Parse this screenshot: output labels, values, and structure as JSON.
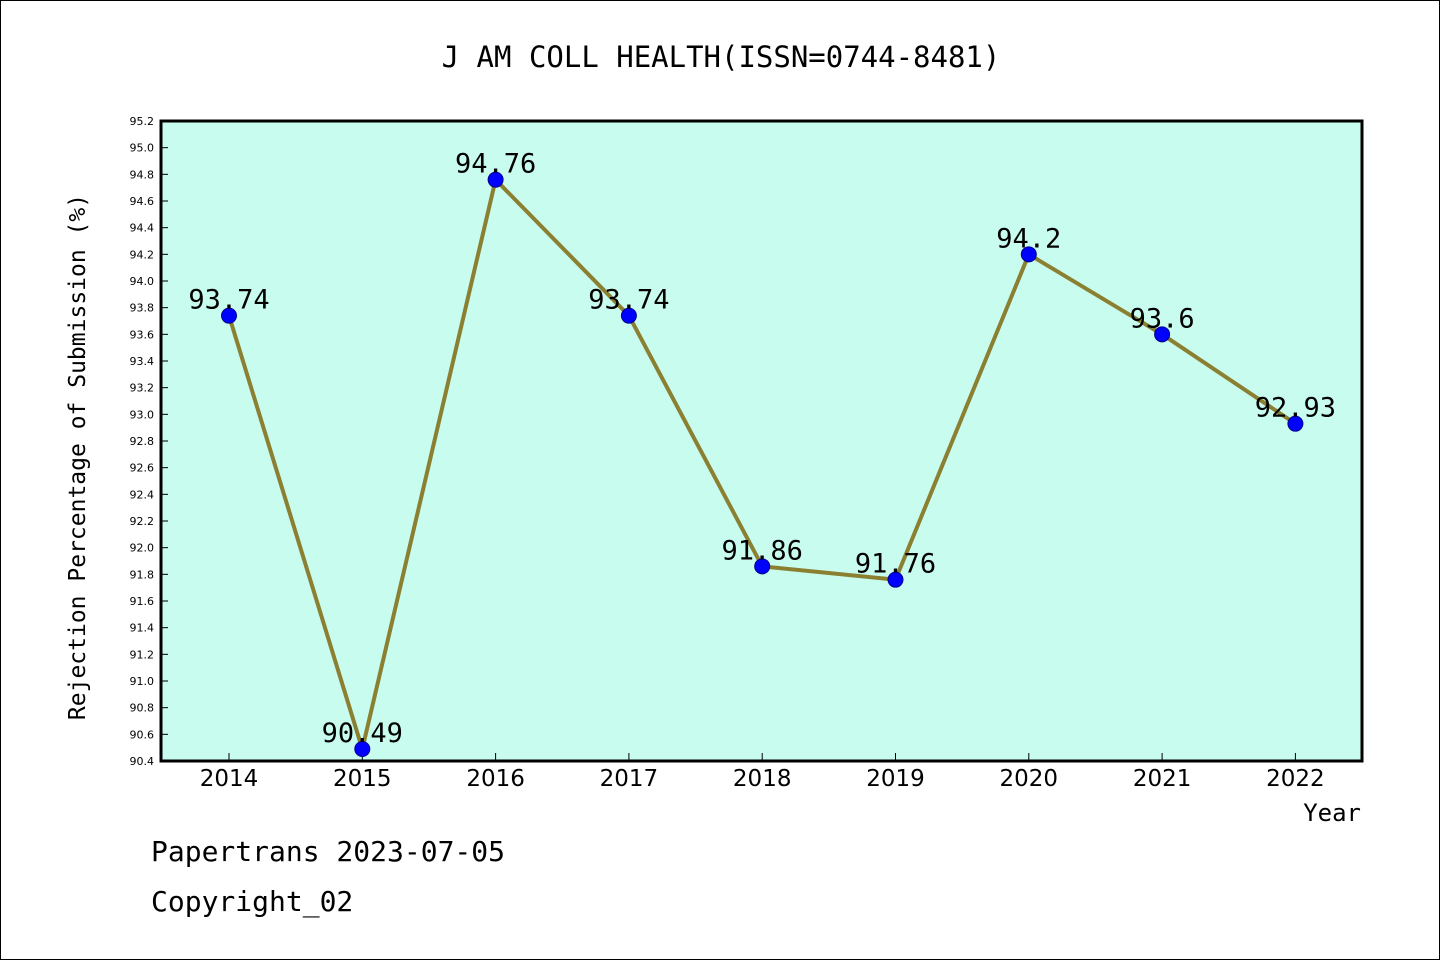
{
  "chart_data": {
    "type": "line",
    "title": "J AM COLL HEALTH(ISSN=0744-8481)",
    "xlabel": "Year",
    "ylabel": "Rejection Percentage of Submission (%)",
    "categories": [
      "2014",
      "2015",
      "2016",
      "2017",
      "2018",
      "2019",
      "2020",
      "2021",
      "2022"
    ],
    "values": [
      93.74,
      90.49,
      94.76,
      93.74,
      91.86,
      91.76,
      94.2,
      93.6,
      92.93
    ],
    "data_labels": [
      "93.74",
      "90.49",
      "94.76",
      "93.74",
      "91.86",
      "91.76",
      "94.2",
      "93.6",
      "92.93"
    ],
    "ylim": [
      90.4,
      95.2
    ],
    "ytick_step": 0.2,
    "grid": false,
    "legend": "none",
    "colors": {
      "plot_background": "#c8fcee",
      "line": "#8b8032",
      "marker": "#0000ff"
    }
  },
  "footer": {
    "source": "Papertrans 2023-07-05",
    "copyright": "Copyright_02"
  }
}
